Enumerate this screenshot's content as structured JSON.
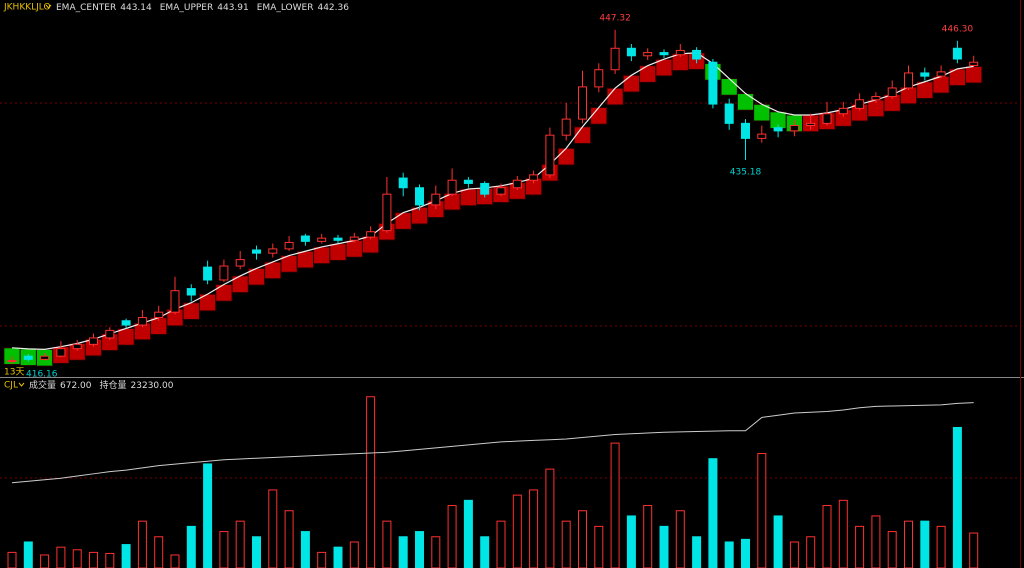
{
  "chart_data": {
    "type": "candlestick",
    "symbol": "JKHKKLJLO",
    "period_label": "13天",
    "legend": [
      {
        "name": "EMA_CENTER",
        "value": 443.14
      },
      {
        "name": "EMA_UPPER",
        "value": 443.91
      },
      {
        "name": "EMA_LOWER",
        "value": 442.36
      }
    ],
    "categories": [
      null,
      null,
      null,
      null,
      null,
      null,
      null,
      null,
      null,
      null,
      null,
      null,
      null,
      null,
      null,
      null,
      null,
      null,
      null,
      null,
      null,
      null,
      null,
      null,
      null,
      null,
      null,
      null,
      null,
      null,
      null,
      null,
      null,
      null,
      null,
      null,
      null,
      null,
      null,
      null,
      null,
      null,
      null,
      null,
      null,
      null,
      null,
      null,
      null,
      null,
      null,
      null,
      null,
      null,
      null,
      null,
      null,
      null,
      null,
      null
    ],
    "ylim": [
      415.05,
      450.1
    ],
    "up_color": "#ff3030",
    "down_color": "#00e5e5",
    "band_up_color": "#c00000",
    "band_down_color": "#00c000",
    "open": [
      416.4,
      416.9,
      416.6,
      416.9,
      417.6,
      418.0,
      418.6,
      420.2,
      419.8,
      420.5,
      421.0,
      423.2,
      425.2,
      424.0,
      425.3,
      426.8,
      426.5,
      426.9,
      428.1,
      427.6,
      427.9,
      427.7,
      428.0,
      428.6,
      433.5,
      432.6,
      431.0,
      432.0,
      433.3,
      433.0,
      432.0,
      432.6,
      433.3,
      433.8,
      437.5,
      439.0,
      442.0,
      443.6,
      445.6,
      444.9,
      445.2,
      445.0,
      445.4,
      444.3,
      440.4,
      438.6,
      437.2,
      438.2,
      437.9,
      438.4,
      438.6,
      439.5,
      440.0,
      440.8,
      441.1,
      441.9,
      443.3,
      443.0,
      445.6,
      444.0
    ],
    "high": [
      416.9,
      417.1,
      417.2,
      418.3,
      418.4,
      419.0,
      419.6,
      420.4,
      421.2,
      421.6,
      424.3,
      423.6,
      425.8,
      425.9,
      426.7,
      427.2,
      427.4,
      428.1,
      428.3,
      428.3,
      428.2,
      428.4,
      429.0,
      433.6,
      434.0,
      432.9,
      432.8,
      434.4,
      433.6,
      433.2,
      433.0,
      433.7,
      434.2,
      438.2,
      440.5,
      443.5,
      444.2,
      447.32,
      446.0,
      445.6,
      445.5,
      446.0,
      445.7,
      444.6,
      440.9,
      439.0,
      438.4,
      438.5,
      438.9,
      439.5,
      440.6,
      440.6,
      441.4,
      441.5,
      442.6,
      444.0,
      443.8,
      444.0,
      446.3,
      444.9
    ],
    "low": [
      416.16,
      416.4,
      416.5,
      416.8,
      417.4,
      417.8,
      418.4,
      419.5,
      419.6,
      420.2,
      420.8,
      422.0,
      423.6,
      423.8,
      425.0,
      425.9,
      426.1,
      426.7,
      427.2,
      427.4,
      427.4,
      427.5,
      427.8,
      428.4,
      431.8,
      430.5,
      430.6,
      431.8,
      432.6,
      431.7,
      431.8,
      432.4,
      433.0,
      433.5,
      437.0,
      438.6,
      441.5,
      443.2,
      444.4,
      444.5,
      444.7,
      444.8,
      444.2,
      440.0,
      438.0,
      435.18,
      436.8,
      437.3,
      437.4,
      438.0,
      438.4,
      439.2,
      439.8,
      440.5,
      440.9,
      441.7,
      442.6,
      442.8,
      444.2,
      443.9
    ],
    "close": [
      416.5,
      416.6,
      416.9,
      417.6,
      418.0,
      418.6,
      419.3,
      419.8,
      420.5,
      421.0,
      423.0,
      422.6,
      424.0,
      425.3,
      425.9,
      426.5,
      426.9,
      427.5,
      427.6,
      427.9,
      427.7,
      428.0,
      428.5,
      432.0,
      432.6,
      431.0,
      432.0,
      433.3,
      433.0,
      432.0,
      432.6,
      433.3,
      433.8,
      437.5,
      439.0,
      442.0,
      443.6,
      445.6,
      444.9,
      445.2,
      445.0,
      445.4,
      444.6,
      440.4,
      438.6,
      437.2,
      437.6,
      437.9,
      438.4,
      438.6,
      439.5,
      440.0,
      440.8,
      441.1,
      441.9,
      443.3,
      443.0,
      443.4,
      444.6,
      444.3
    ],
    "ema_upper": [
      417.68,
      417.58,
      417.53,
      417.78,
      418.08,
      418.48,
      418.98,
      419.48,
      419.98,
      420.48,
      421.28,
      421.88,
      422.68,
      423.58,
      424.38,
      425.08,
      425.68,
      426.28,
      426.68,
      427.08,
      427.38,
      427.68,
      428.08,
      429.28,
      430.28,
      430.78,
      431.38,
      432.08,
      432.48,
      432.58,
      432.78,
      433.08,
      433.48,
      434.78,
      436.28,
      438.28,
      440.08,
      441.88,
      443.08,
      443.98,
      444.58,
      445.08,
      445.18,
      444.18,
      442.78,
      441.38,
      440.38,
      439.68,
      439.38,
      439.38,
      439.58,
      439.88,
      440.38,
      440.78,
      441.28,
      441.98,
      442.48,
      442.98,
      443.68,
      443.91
    ],
    "ema_lower": [
      416.12,
      416.02,
      415.97,
      416.22,
      416.52,
      416.92,
      417.42,
      417.92,
      418.42,
      418.92,
      419.72,
      420.32,
      421.12,
      422.02,
      422.82,
      423.52,
      424.12,
      424.72,
      425.12,
      425.52,
      425.82,
      426.12,
      426.52,
      427.72,
      428.72,
      429.22,
      429.82,
      430.52,
      430.92,
      431.02,
      431.22,
      431.52,
      431.92,
      433.22,
      434.72,
      436.72,
      438.52,
      440.32,
      441.52,
      442.42,
      443.02,
      443.52,
      443.62,
      442.62,
      441.22,
      439.82,
      438.82,
      438.12,
      437.82,
      437.82,
      438.02,
      438.32,
      438.82,
      439.22,
      439.72,
      440.42,
      440.92,
      441.42,
      442.12,
      442.36
    ],
    "annotations": [
      {
        "text": "447.32",
        "index": 37,
        "value": 447.32,
        "position": "above",
        "color": "#ff4040"
      },
      {
        "text": "435.18",
        "index": 45,
        "value": 435.18,
        "position": "below",
        "color": "#00d0d0"
      },
      {
        "text": "446.30",
        "index": 58,
        "value": 446.3,
        "position": "above",
        "color": "#ff4040"
      },
      {
        "text": "416.16",
        "index": 0,
        "value": 416.16,
        "position": "right",
        "color": "#00d0d0"
      }
    ],
    "sub_chart": {
      "name": "CJL",
      "legend": [
        {
          "name": "成交量",
          "value": 672,
          "label": "672.00"
        },
        {
          "name": "持仓量",
          "value": 23230,
          "label": "23230.00"
        }
      ],
      "volume": [
        300,
        500,
        250,
        400,
        350,
        300,
        280,
        450,
        900,
        600,
        250,
        800,
        2000,
        700,
        900,
        600,
        1500,
        1100,
        700,
        300,
        400,
        500,
        3290,
        900,
        600,
        700,
        600,
        1200,
        1300,
        600,
        900,
        1400,
        1500,
        1900,
        900,
        1100,
        800,
        2400,
        1000,
        1200,
        800,
        1100,
        600,
        2100,
        500,
        550,
        2200,
        1000,
        500,
        600,
        1200,
        1300,
        800,
        1000,
        700,
        900,
        900,
        800,
        2700,
        672
      ],
      "open_interest": [
        22150,
        22170,
        22190,
        22210,
        22240,
        22270,
        22300,
        22320,
        22350,
        22380,
        22400,
        22420,
        22440,
        22460,
        22470,
        22480,
        22490,
        22500,
        22510,
        22520,
        22530,
        22540,
        22550,
        22560,
        22580,
        22600,
        22620,
        22640,
        22660,
        22680,
        22700,
        22710,
        22720,
        22730,
        22740,
        22760,
        22780,
        22800,
        22810,
        22820,
        22830,
        22835,
        22840,
        22845,
        22850,
        22850,
        23030,
        23060,
        23090,
        23100,
        23110,
        23130,
        23160,
        23180,
        23185,
        23190,
        23195,
        23200,
        23220,
        23230
      ],
      "ylim": [
        0,
        3420
      ],
      "y2lim": [
        21000,
        23400
      ],
      "oi_color": "#cccccc"
    }
  }
}
